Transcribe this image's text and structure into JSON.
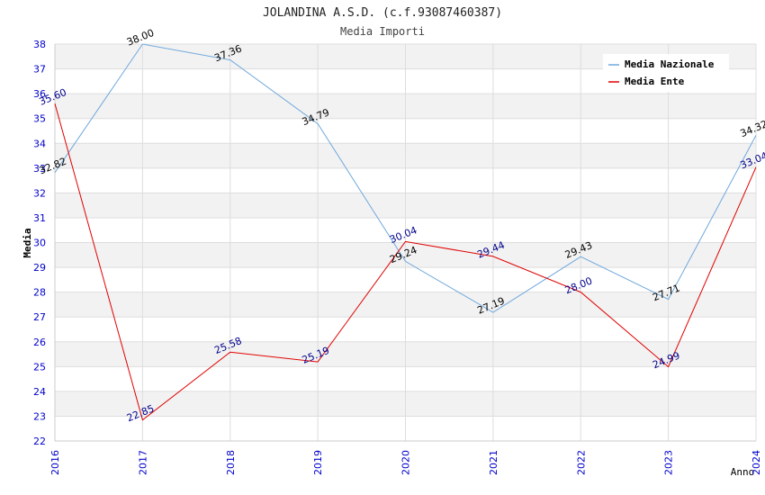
{
  "chart_data": {
    "type": "line",
    "title": "JOLANDINA A.S.D. (c.f.93087460387)",
    "subtitle": "Media Importi",
    "xlabel": "Anno",
    "ylabel": "Media",
    "x": [
      "2016",
      "2017",
      "2018",
      "2019",
      "2020",
      "2021",
      "2022",
      "2023",
      "2024"
    ],
    "ylim": [
      22,
      38
    ],
    "yticks": [
      "22",
      "23",
      "24",
      "25",
      "26",
      "27",
      "28",
      "29",
      "30",
      "31",
      "32",
      "33",
      "34",
      "35",
      "36",
      "37",
      "38"
    ],
    "legend_position": "top-right",
    "series": [
      {
        "name": "Media Nazionale",
        "color": "#6fa8dc",
        "label_color": "#000000",
        "values": [
          32.82,
          38.0,
          37.36,
          34.79,
          29.24,
          27.19,
          29.43,
          27.71,
          34.32
        ],
        "labels": [
          "32.82",
          "38.00",
          "37.36",
          "34.79",
          "29.24",
          "27.19",
          "29.43",
          "27.71",
          "34.32"
        ]
      },
      {
        "name": "Media Ente",
        "color": "#e00000",
        "label_color": "#00008b",
        "values": [
          35.6,
          22.85,
          25.58,
          25.19,
          30.04,
          29.44,
          28.0,
          24.99,
          33.04
        ],
        "labels": [
          "35.60",
          "22.85",
          "25.58",
          "25.19",
          "30.04",
          "29.44",
          "28.00",
          "24.99",
          "33.04"
        ]
      }
    ],
    "tick_color": "#0000cc",
    "band_color": "#f2f2f2",
    "grid_color": "#dddddd"
  }
}
